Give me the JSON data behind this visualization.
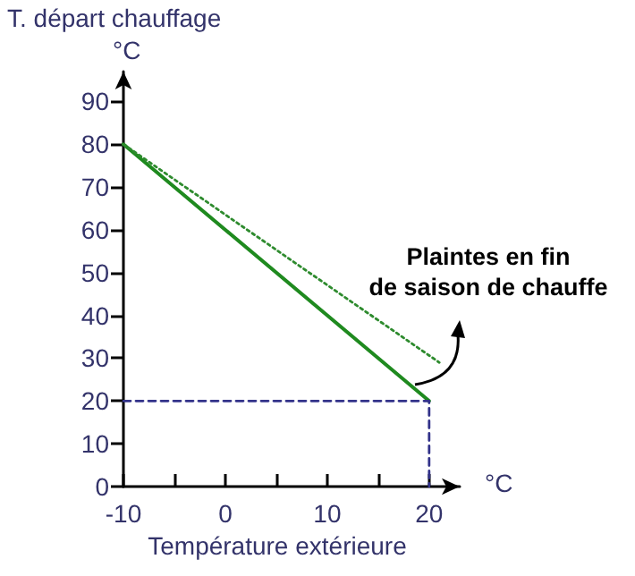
{
  "chart_data": {
    "type": "line",
    "xlabel": "Température extérieure",
    "ylabel": "T. départ chauffage",
    "annotations": [
      "°C",
      "°C",
      "Plaintes en fin\nde saison de chauffe"
    ],
    "series": [
      {
        "color": "#1f8a1f",
        "line_style": "solid",
        "x": [
          -10,
          20
        ],
        "values": [
          80,
          20
        ]
      },
      {
        "color": "#2e8b2e",
        "line_style": "dotted",
        "x": [
          -10,
          21
        ],
        "values": [
          80,
          29
        ]
      },
      {
        "color": "#33338a",
        "line_style": "dashed",
        "x": [
          -10,
          20,
          20
        ],
        "values": [
          20,
          20,
          0
        ]
      }
    ],
    "xlim": [
      -10,
      23
    ],
    "xticks": [
      -10,
      {
        "value": -5,
        "label": null
      },
      0,
      {
        "value": 5,
        "label": null
      },
      10,
      {
        "value": 15,
        "label": null
      },
      20
    ],
    "ylim": [
      0,
      97
    ],
    "yticks": [
      0,
      10,
      20,
      30,
      40,
      50,
      60,
      70,
      80,
      90
    ],
    "grid": false,
    "marker": "none"
  }
}
